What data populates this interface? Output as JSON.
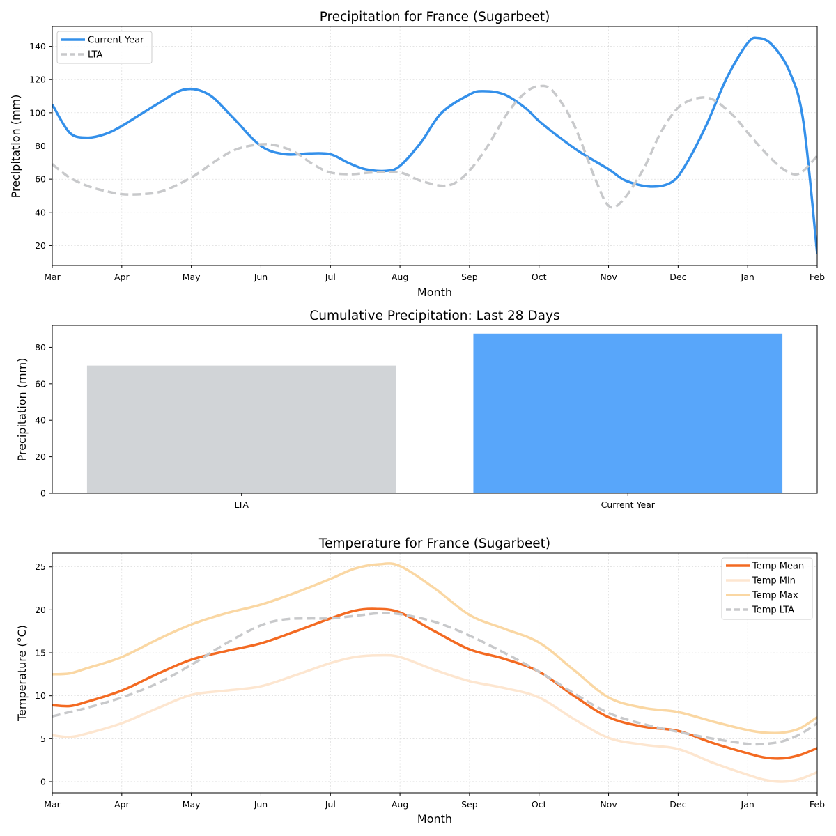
{
  "chart_data": [
    {
      "type": "line",
      "title": "Precipitation for France (Sugarbeet)",
      "xlabel": "Month",
      "ylabel": "Precipitation (mm)",
      "x_tick_labels": [
        "Mar",
        "Apr",
        "May",
        "Jun",
        "Jul",
        "Aug",
        "Sep",
        "Oct",
        "Nov",
        "Dec",
        "Jan",
        "Feb"
      ],
      "xlim": [
        0,
        11
      ],
      "ylim": [
        8,
        152
      ],
      "y_ticks": [
        20,
        40,
        60,
        80,
        100,
        120,
        140
      ],
      "legend_position": "top-left",
      "series": [
        {
          "name": "Current Year",
          "color": "#3490ea",
          "style": "solid",
          "x": [
            0,
            0.25,
            0.5,
            0.75,
            1,
            1.5,
            1.9,
            2.25,
            2.6,
            3,
            3.35,
            3.7,
            4,
            4.25,
            4.5,
            4.8,
            5,
            5.3,
            5.6,
            6,
            6.2,
            6.5,
            6.8,
            7,
            7.3,
            7.6,
            8,
            8.25,
            8.6,
            8.9,
            9.1,
            9.4,
            9.7,
            10,
            10.15,
            10.35,
            10.6,
            10.8,
            11
          ],
          "y": [
            105,
            88,
            85,
            87,
            92,
            105,
            114,
            111,
            97,
            80,
            75,
            75.5,
            75,
            70,
            66,
            65,
            68,
            82,
            100,
            111,
            113,
            111,
            103,
            95,
            85,
            76,
            66,
            59,
            55.5,
            58,
            68,
            92,
            121,
            142,
            145,
            141,
            125,
            95,
            15
          ]
        },
        {
          "name": "LTA",
          "color": "#c8c9cb",
          "style": "dashed",
          "x": [
            0,
            0.25,
            0.5,
            0.75,
            1,
            1.3,
            1.6,
            2,
            2.35,
            2.65,
            3,
            3.25,
            3.5,
            3.75,
            4,
            4.3,
            4.6,
            5,
            5.3,
            5.65,
            5.9,
            6.2,
            6.55,
            6.8,
            7,
            7.2,
            7.5,
            7.8,
            8,
            8.2,
            8.5,
            8.75,
            9,
            9.25,
            9.5,
            9.8,
            10,
            10.3,
            10.55,
            10.75,
            11
          ],
          "y": [
            69,
            61,
            56,
            53,
            51,
            51,
            53,
            61,
            71,
            78,
            81,
            80,
            76,
            69,
            64,
            63,
            64,
            64,
            59,
            56,
            61,
            76,
            100,
            112,
            116,
            113,
            93,
            61,
            44,
            47,
            66,
            88,
            103,
            108.5,
            108,
            98,
            88,
            74,
            65,
            63.5,
            74
          ]
        }
      ]
    },
    {
      "type": "bar",
      "title": "Cumulative Precipitation: Last 28 Days",
      "xlabel": "",
      "ylabel": "Precipitation (mm)",
      "categories": [
        "LTA",
        "Current Year"
      ],
      "values": [
        70,
        87.5
      ],
      "colors": [
        "#d1d4d7",
        "#58a6fa"
      ],
      "ylim": [
        0,
        92
      ],
      "y_ticks": [
        0,
        20,
        40,
        60,
        80
      ]
    },
    {
      "type": "line",
      "title": "Temperature for France (Sugarbeet)",
      "xlabel": "Month",
      "ylabel": "Temperature (°C)",
      "x_tick_labels": [
        "Mar",
        "Apr",
        "May",
        "Jun",
        "Jul",
        "Aug",
        "Sep",
        "Oct",
        "Nov",
        "Dec",
        "Jan",
        "Feb"
      ],
      "xlim": [
        0,
        11
      ],
      "ylim": [
        -1.3,
        26.6
      ],
      "y_ticks": [
        0,
        5,
        10,
        15,
        20,
        25
      ],
      "legend_position": "top-right",
      "series": [
        {
          "name": "Temp Mean",
          "color": "#f36a22",
          "style": "solid",
          "x": [
            0,
            0.25,
            0.5,
            1,
            1.5,
            2,
            2.5,
            3,
            3.5,
            4,
            4.35,
            4.65,
            5,
            5.5,
            6,
            6.5,
            7,
            7.5,
            8,
            8.5,
            9,
            9.5,
            10,
            10.25,
            10.5,
            10.75,
            11
          ],
          "y": [
            8.9,
            8.8,
            9.3,
            10.6,
            12.5,
            14.2,
            15.2,
            16.1,
            17.5,
            19,
            19.9,
            20.1,
            19.7,
            17.5,
            15.4,
            14.3,
            12.8,
            10,
            7.5,
            6.4,
            5.9,
            4.5,
            3.3,
            2.8,
            2.7,
            3.1,
            3.9
          ]
        },
        {
          "name": "Temp Min",
          "color": "#fde6d0",
          "style": "solid",
          "x": [
            0,
            0.25,
            0.5,
            1,
            1.5,
            2,
            2.5,
            3,
            3.5,
            4,
            4.35,
            4.7,
            5,
            5.5,
            6,
            6.5,
            7,
            7.5,
            8,
            8.5,
            9,
            9.5,
            10,
            10.25,
            10.5,
            10.75,
            11
          ],
          "y": [
            5.4,
            5.2,
            5.6,
            6.8,
            8.5,
            10.1,
            10.6,
            11.1,
            12.4,
            13.8,
            14.5,
            14.7,
            14.5,
            13,
            11.7,
            10.9,
            9.8,
            7.3,
            5.1,
            4.3,
            3.8,
            2.2,
            0.8,
            0.2,
            0,
            0.3,
            1.1
          ]
        },
        {
          "name": "Temp Max",
          "color": "#fad7a3",
          "style": "solid",
          "x": [
            0,
            0.25,
            0.5,
            1,
            1.5,
            2,
            2.5,
            3,
            3.5,
            4,
            4.35,
            4.7,
            5,
            5.5,
            6,
            6.5,
            7,
            7.5,
            8,
            8.5,
            9,
            9.5,
            10,
            10.25,
            10.5,
            10.75,
            11
          ],
          "y": [
            12.5,
            12.6,
            13.2,
            14.5,
            16.5,
            18.3,
            19.6,
            20.6,
            22,
            23.6,
            24.8,
            25.3,
            25.1,
            22.5,
            19.4,
            17.8,
            16.2,
            13,
            9.8,
            8.6,
            8.1,
            7,
            6,
            5.7,
            5.7,
            6.2,
            7.5
          ]
        },
        {
          "name": "Temp LTA",
          "color": "#c8c9cb",
          "style": "dashed",
          "x": [
            0,
            0.25,
            0.5,
            1,
            1.5,
            2,
            2.5,
            3,
            3.35,
            3.7,
            4,
            4.35,
            4.7,
            5,
            5.5,
            6,
            6.5,
            7,
            7.5,
            8,
            8.5,
            9,
            9.5,
            10,
            10.25,
            10.5,
            10.75,
            11
          ],
          "y": [
            7.6,
            8.1,
            8.6,
            9.8,
            11.4,
            13.6,
            16.1,
            18.2,
            18.9,
            19,
            19,
            19.3,
            19.6,
            19.5,
            18.6,
            17,
            15,
            12.8,
            10.3,
            8,
            6.7,
            5.8,
            5,
            4.4,
            4.4,
            4.7,
            5.5,
            6.8
          ]
        }
      ]
    }
  ]
}
